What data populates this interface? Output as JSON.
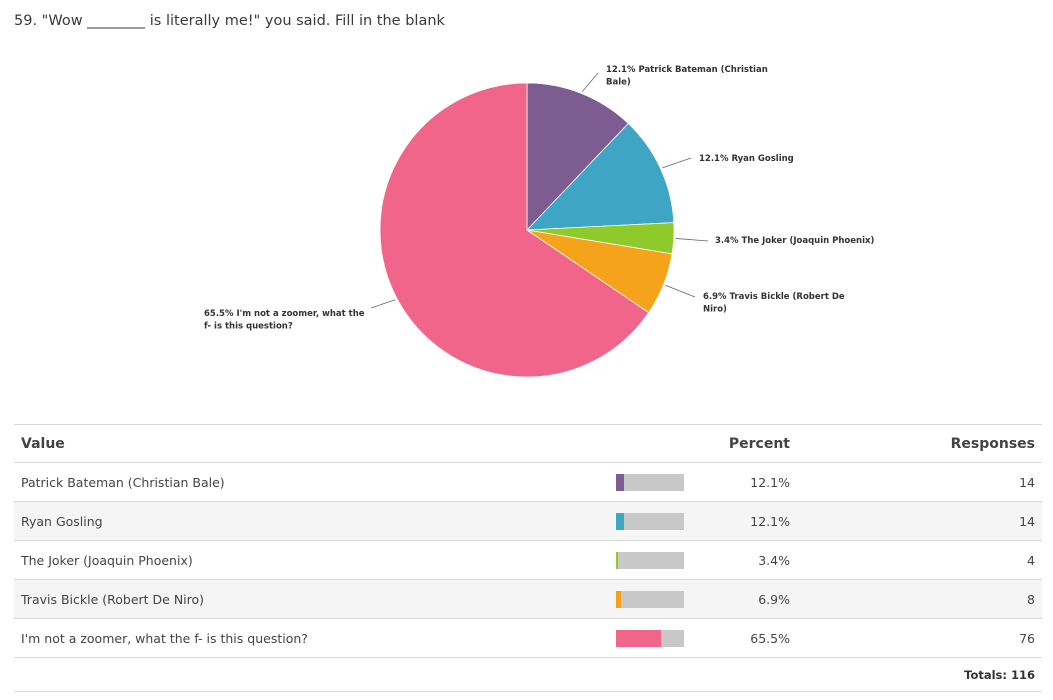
{
  "question": {
    "title": "59. \"Wow ________ is literally me!\" you said. Fill in the blank"
  },
  "chart_data": {
    "type": "pie",
    "title": "",
    "slices": [
      {
        "label": "Patrick Bateman (Christian Bale)",
        "label_lines": [
          "12.1% Patrick Bateman (Christian",
          "Bale)"
        ],
        "value": 12.1,
        "responses": 14,
        "color": "#7d5d91"
      },
      {
        "label": "Ryan Gosling",
        "label_lines": [
          "12.1% Ryan Gosling"
        ],
        "value": 12.1,
        "responses": 14,
        "color": "#3fa5c4"
      },
      {
        "label": "The Joker (Joaquin Phoenix)",
        "label_lines": [
          "3.4% The Joker (Joaquin Phoenix)"
        ],
        "value": 3.4,
        "responses": 4,
        "color": "#8fca2b"
      },
      {
        "label": "Travis Bickle (Robert De Niro)",
        "label_lines": [
          "6.9% Travis Bickle (Robert De",
          "Niro)"
        ],
        "value": 6.9,
        "responses": 8,
        "color": "#f5a31a"
      },
      {
        "label": "I'm not a zoomer, what the f- is this question?",
        "label_lines": [
          "65.5% I'm not a zoomer, what the",
          "f- is this question?"
        ],
        "value": 65.5,
        "responses": 76,
        "color": "#f06589"
      }
    ]
  },
  "table": {
    "headers": {
      "value": "Value",
      "percent": "Percent",
      "responses": "Responses"
    },
    "rows": [
      {
        "value": "Patrick Bateman (Christian Bale)",
        "percent": "12.1%",
        "fraction": 0.121,
        "responses": "14",
        "color": "#7d5d91"
      },
      {
        "value": "Ryan Gosling",
        "percent": "12.1%",
        "fraction": 0.121,
        "responses": "14",
        "color": "#3fa5c4"
      },
      {
        "value": "The Joker (Joaquin Phoenix)",
        "percent": "3.4%",
        "fraction": 0.034,
        "responses": "4",
        "color": "#8fca2b"
      },
      {
        "value": "Travis Bickle (Robert De Niro)",
        "percent": "6.9%",
        "fraction": 0.069,
        "responses": "8",
        "color": "#f5a31a"
      },
      {
        "value": "I'm not a zoomer, what the f- is this question?",
        "percent": "65.5%",
        "fraction": 0.655,
        "responses": "76",
        "color": "#f06589"
      }
    ],
    "totals": "Totals: 116"
  }
}
